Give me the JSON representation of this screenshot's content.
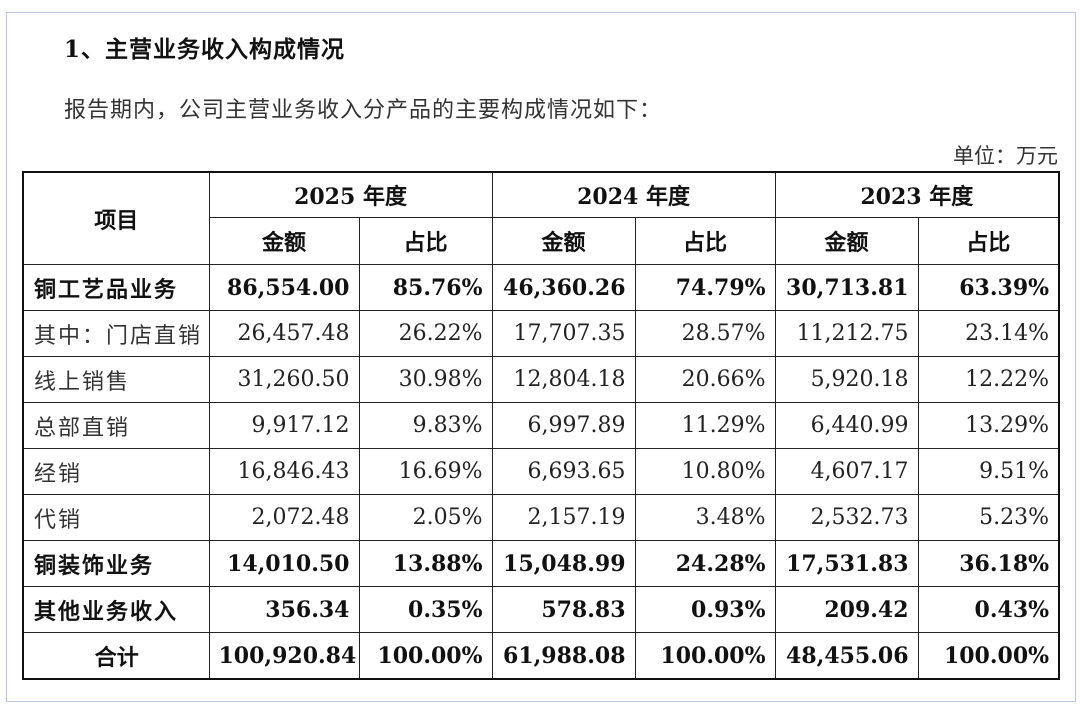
{
  "heading": "1、主营业务收入构成情况",
  "intro": "报告期内，公司主营业务收入分产品的主要构成情况如下：",
  "unit": "单位：万元",
  "table": {
    "item_header": "项目",
    "years": [
      "2025 年度",
      "2024 年度",
      "2023 年度"
    ],
    "sub_headers": [
      "金额",
      "占比"
    ],
    "rows": [
      {
        "label": "铜工艺品业务",
        "bold": true,
        "cells": [
          "86,554.00",
          "85.76%",
          "46,360.26",
          "74.79%",
          "30,713.81",
          "63.39%"
        ]
      },
      {
        "label": "其中：门店直销",
        "bold": false,
        "cells": [
          "26,457.48",
          "26.22%",
          "17,707.35",
          "28.57%",
          "11,212.75",
          "23.14%"
        ]
      },
      {
        "label": "线上销售",
        "bold": false,
        "cells": [
          "31,260.50",
          "30.98%",
          "12,804.18",
          "20.66%",
          "5,920.18",
          "12.22%"
        ]
      },
      {
        "label": "总部直销",
        "bold": false,
        "cells": [
          "9,917.12",
          "9.83%",
          "6,997.89",
          "11.29%",
          "6,440.99",
          "13.29%"
        ]
      },
      {
        "label": "经销",
        "bold": false,
        "cells": [
          "16,846.43",
          "16.69%",
          "6,693.65",
          "10.80%",
          "4,607.17",
          "9.51%"
        ]
      },
      {
        "label": "代销",
        "bold": false,
        "cells": [
          "2,072.48",
          "2.05%",
          "2,157.19",
          "3.48%",
          "2,532.73",
          "5.23%"
        ]
      },
      {
        "label": "铜装饰业务",
        "bold": true,
        "cells": [
          "14,010.50",
          "13.88%",
          "15,048.99",
          "24.28%",
          "17,531.83",
          "36.18%"
        ]
      },
      {
        "label": "其他业务收入",
        "bold": true,
        "cells": [
          "356.34",
          "0.35%",
          "578.83",
          "0.93%",
          "209.42",
          "0.43%"
        ]
      },
      {
        "label": "合计",
        "bold": true,
        "total": true,
        "cells": [
          "100,920.84",
          "100.00%",
          "61,988.08",
          "100.00%",
          "48,455.06",
          "100.00%"
        ]
      }
    ]
  }
}
